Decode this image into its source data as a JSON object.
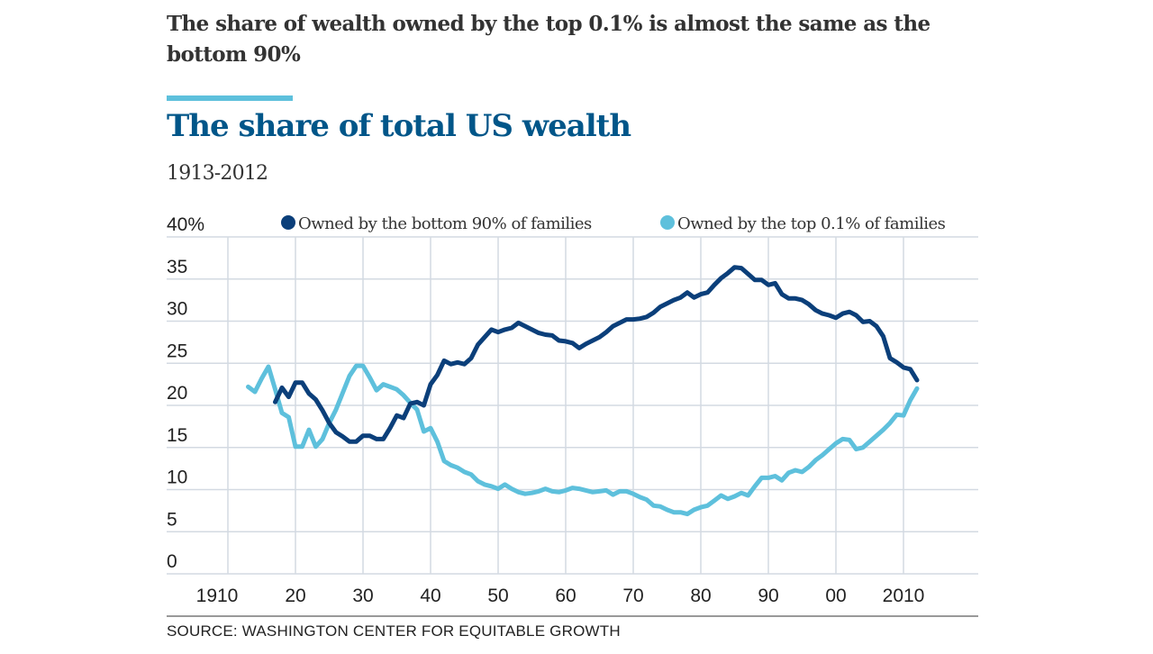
{
  "headline": "The share of wealth owned by the top 0.1% is almost the same as the bottom 90%",
  "source": "SOURCE: WASHINGTON CENTER FOR EQUITABLE GROWTH",
  "colors": {
    "bottom90": "#0b3f7a",
    "top01": "#5ec0dc",
    "title": "#005689",
    "grid": "#d3dae2",
    "accent": "#5ec0dc"
  },
  "chart_data": {
    "type": "line",
    "title": "The share of total US wealth",
    "subtitle": "1913-2012",
    "xlabel": "",
    "ylabel": "",
    "xlim": [
      1910,
      2021
    ],
    "ylim": [
      0,
      40
    ],
    "grid": true,
    "legend_position": "top",
    "y_ticks": [
      {
        "value": 40,
        "label": "40%"
      },
      {
        "value": 35,
        "label": "35"
      },
      {
        "value": 30,
        "label": "30"
      },
      {
        "value": 25,
        "label": "25"
      },
      {
        "value": 20,
        "label": "20"
      },
      {
        "value": 15,
        "label": "15"
      },
      {
        "value": 10,
        "label": "10"
      },
      {
        "value": 5,
        "label": "5"
      },
      {
        "value": 0,
        "label": "0"
      }
    ],
    "x_ticks": [
      {
        "value": 1910,
        "label": "1910"
      },
      {
        "value": 1920,
        "label": "20"
      },
      {
        "value": 1930,
        "label": "30"
      },
      {
        "value": 1940,
        "label": "40"
      },
      {
        "value": 1950,
        "label": "50"
      },
      {
        "value": 1960,
        "label": "60"
      },
      {
        "value": 1970,
        "label": "70"
      },
      {
        "value": 1980,
        "label": "80"
      },
      {
        "value": 1990,
        "label": "90"
      },
      {
        "value": 2000,
        "label": "00"
      },
      {
        "value": 2010,
        "label": "2010"
      }
    ],
    "series": [
      {
        "name": "Owned by the bottom 90% of families",
        "color": "#0b3f7a",
        "start_year": 1917,
        "values": [
          20.4,
          22.1,
          21.0,
          22.7,
          22.7,
          21.4,
          20.7,
          19.4,
          17.9,
          16.8,
          16.3,
          15.7,
          15.7,
          16.4,
          16.4,
          16.0,
          16.0,
          17.3,
          18.8,
          18.5,
          20.2,
          20.4,
          20.0,
          22.5,
          23.6,
          25.3,
          24.9,
          25.1,
          24.9,
          25.6,
          27.2,
          28.1,
          29.0,
          28.7,
          29.0,
          29.2,
          29.8,
          29.4,
          29.0,
          28.6,
          28.4,
          28.3,
          27.7,
          27.6,
          27.4,
          26.8,
          27.3,
          27.7,
          28.1,
          28.7,
          29.4,
          29.8,
          30.2,
          30.2,
          30.3,
          30.5,
          31.0,
          31.7,
          32.1,
          32.5,
          32.8,
          33.4,
          32.8,
          33.2,
          33.4,
          34.3,
          35.1,
          35.7,
          36.4,
          36.3,
          35.6,
          34.9,
          34.9,
          34.3,
          34.5,
          33.2,
          32.7,
          32.7,
          32.5,
          32.0,
          31.3,
          30.9,
          30.7,
          30.4,
          30.9,
          31.1,
          30.7,
          29.9,
          30.0,
          29.4,
          28.2,
          25.6,
          25.1,
          24.5,
          24.3,
          23.0
        ]
      },
      {
        "name": "Owned by the top 0.1% of families",
        "color": "#5ec0dc",
        "start_year": 1913,
        "values": [
          22.2,
          21.6,
          23.2,
          24.6,
          21.9,
          19.1,
          18.6,
          15.1,
          15.1,
          17.1,
          15.1,
          16.0,
          17.9,
          19.5,
          21.5,
          23.5,
          24.7,
          24.7,
          23.3,
          21.8,
          22.5,
          22.2,
          21.9,
          21.2,
          20.3,
          19.5,
          16.9,
          17.3,
          15.7,
          13.4,
          12.9,
          12.6,
          12.1,
          11.8,
          11.0,
          10.6,
          10.4,
          10.1,
          10.6,
          10.1,
          9.7,
          9.5,
          9.6,
          9.8,
          10.1,
          9.8,
          9.7,
          9.9,
          10.2,
          10.1,
          9.9,
          9.7,
          9.8,
          9.9,
          9.4,
          9.8,
          9.8,
          9.5,
          9.1,
          8.8,
          8.1,
          8.0,
          7.6,
          7.3,
          7.3,
          7.1,
          7.6,
          7.9,
          8.1,
          8.7,
          9.3,
          8.9,
          9.2,
          9.6,
          9.3,
          10.4,
          11.4,
          11.4,
          11.6,
          11.1,
          12.0,
          12.3,
          12.1,
          12.7,
          13.5,
          14.1,
          14.8,
          15.5,
          16.0,
          15.9,
          14.8,
          15.0,
          15.7,
          16.4,
          17.1,
          17.9,
          18.9,
          18.8,
          20.6,
          22.0
        ]
      }
    ]
  }
}
